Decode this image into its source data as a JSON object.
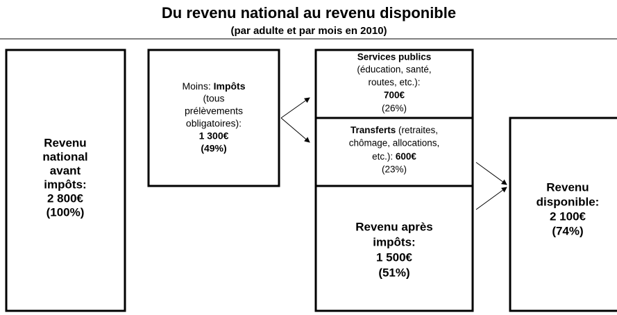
{
  "header": {
    "title": "Du revenu national au revenu disponible",
    "subtitle": "(par adulte et par mois en 2010)"
  },
  "national_income": {
    "lines": [
      "Revenu",
      "national",
      "avant",
      "impôts:",
      "2 800€",
      "(100%)"
    ]
  },
  "taxes": {
    "prefix": "Moins:",
    "name": "Impôts",
    "lines": [
      "(tous",
      "prélèvements",
      "obligatoires):"
    ],
    "amount": "1 300€",
    "share": "(49%)"
  },
  "public_services": {
    "name": "Services publics",
    "lines": [
      "(éducation, santé,",
      "routes, etc.):"
    ],
    "amount": "700€",
    "share": "(26%)"
  },
  "transfers": {
    "name": "Transferts",
    "lines": [
      "(retraites,",
      "chômage, allocations,",
      "etc.):"
    ],
    "amount": "600€",
    "share": "(23%)"
  },
  "after_tax_income": {
    "lines": [
      "Revenu après",
      "impôts:",
      "1 500€",
      "(51%)"
    ]
  },
  "disposable_income": {
    "lines": [
      "Revenu",
      "disponible:",
      "2 100€",
      "(74%)"
    ]
  }
}
